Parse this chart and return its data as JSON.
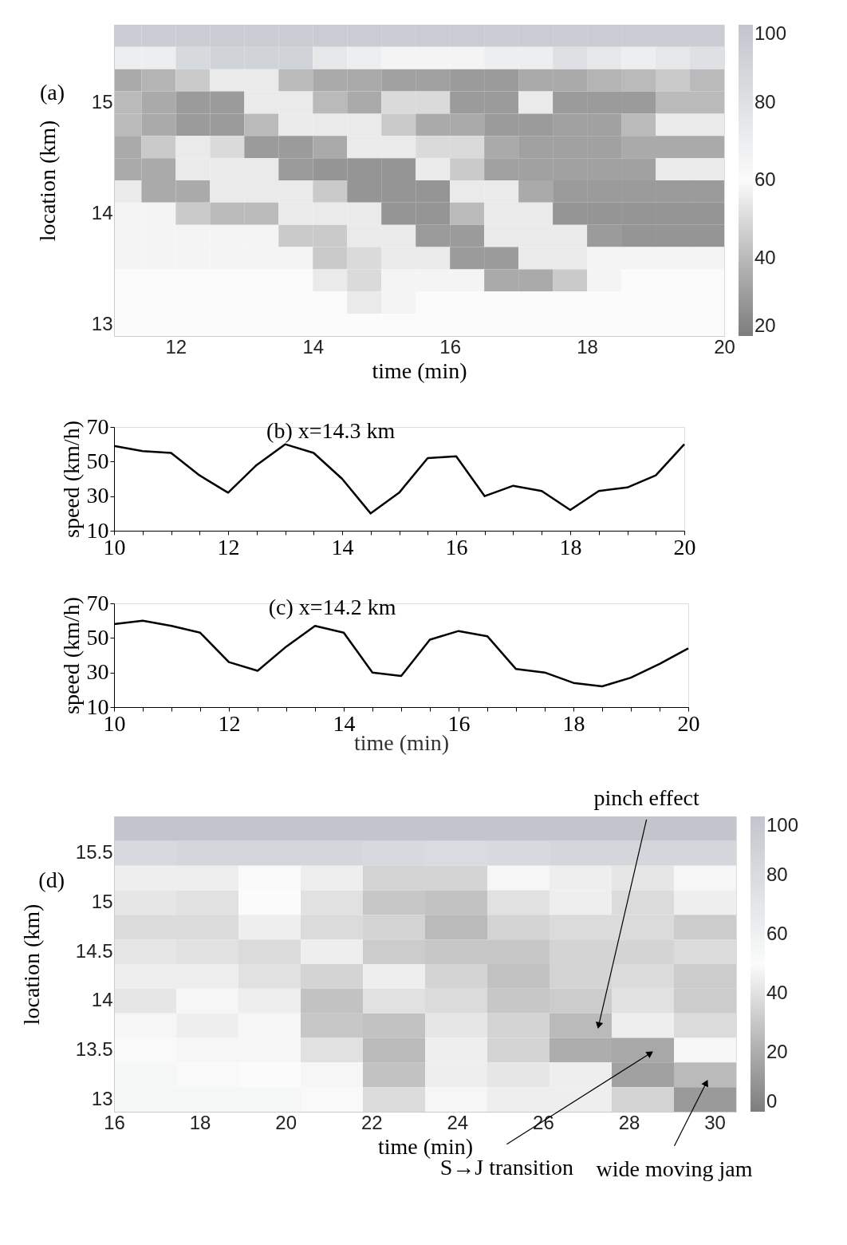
{
  "chart_data": [
    {
      "type": "heatmap",
      "title": "(a)",
      "xlabel": "time (min)",
      "ylabel": "location (km)",
      "x": [
        11.25,
        11.75,
        12.25,
        12.75,
        13.25,
        13.75,
        14.25,
        14.75,
        15.25,
        15.75,
        16.25,
        16.75,
        17.25,
        17.75,
        18.25,
        18.75,
        19.25,
        19.75
      ],
      "y_categories": [
        null,
        null,
        null,
        "15",
        null,
        null,
        null,
        null,
        "14",
        null,
        null,
        null,
        null,
        "13"
      ],
      "cells": [
        [
          95,
          95,
          95,
          95,
          95,
          95,
          95,
          95,
          95,
          95,
          95,
          95,
          95,
          95,
          95,
          95,
          95,
          95
        ],
        [
          70,
          70,
          85,
          90,
          90,
          90,
          75,
          70,
          65,
          65,
          65,
          70,
          70,
          80,
          75,
          70,
          75,
          80
        ],
        [
          35,
          38,
          45,
          55,
          55,
          40,
          35,
          35,
          32,
          32,
          30,
          30,
          35,
          35,
          38,
          40,
          45,
          40
        ],
        [
          40,
          35,
          30,
          30,
          55,
          55,
          40,
          35,
          50,
          50,
          30,
          30,
          55,
          30,
          30,
          30,
          40,
          40
        ],
        [
          40,
          35,
          30,
          30,
          40,
          55,
          55,
          55,
          45,
          35,
          35,
          30,
          30,
          32,
          32,
          40,
          55,
          55
        ],
        [
          35,
          45,
          55,
          50,
          30,
          30,
          35,
          55,
          55,
          50,
          50,
          35,
          32,
          32,
          32,
          35,
          35,
          35
        ],
        [
          35,
          35,
          55,
          55,
          55,
          30,
          28,
          28,
          28,
          55,
          45,
          32,
          32,
          32,
          32,
          32,
          55,
          55
        ],
        [
          55,
          35,
          35,
          55,
          55,
          55,
          45,
          28,
          28,
          28,
          55,
          55,
          35,
          30,
          30,
          30,
          30,
          30
        ],
        [
          58,
          58,
          45,
          40,
          40,
          55,
          55,
          55,
          28,
          28,
          40,
          55,
          55,
          28,
          28,
          28,
          28,
          28
        ],
        [
          58,
          58,
          58,
          58,
          58,
          45,
          45,
          55,
          55,
          30,
          30,
          55,
          55,
          55,
          30,
          28,
          28,
          28
        ],
        [
          58,
          58,
          58,
          58,
          58,
          58,
          45,
          50,
          55,
          55,
          30,
          30,
          55,
          55,
          58,
          58,
          58,
          58
        ],
        [
          60,
          60,
          60,
          60,
          60,
          60,
          55,
          50,
          58,
          58,
          58,
          35,
          35,
          45,
          58,
          60,
          60,
          60
        ],
        [
          60,
          60,
          60,
          60,
          60,
          60,
          60,
          55,
          58,
          60,
          60,
          60,
          60,
          60,
          60,
          60,
          60,
          60
        ],
        [
          60,
          60,
          60,
          60,
          60,
          60,
          60,
          60,
          60,
          60,
          60,
          60,
          60,
          60,
          60,
          60,
          60,
          60
        ]
      ],
      "xlim": [
        11.1,
        20
      ],
      "xticks": [
        12,
        14,
        16,
        18,
        20
      ],
      "clim": [
        20,
        100
      ],
      "cticks": [
        20,
        40,
        60,
        80,
        100
      ]
    },
    {
      "type": "line",
      "title": "(b) x=14.3 km",
      "ylabel": "speed (km/h)",
      "x": [
        10,
        10.5,
        11,
        11.5,
        12,
        12.5,
        13,
        13.5,
        14,
        14.5,
        15,
        15.5,
        16,
        16.5,
        17,
        17.5,
        18,
        18.5,
        19,
        19.5,
        20
      ],
      "series": [
        {
          "color": "#000000",
          "values": [
            59,
            56,
            55,
            42,
            32,
            48,
            60,
            55,
            40,
            20,
            32,
            52,
            53,
            30,
            36,
            33,
            22,
            33,
            35,
            42,
            60
          ]
        }
      ],
      "xlim": [
        10,
        20
      ],
      "ylim": [
        10,
        70
      ],
      "yticks": [
        10,
        30,
        50,
        70
      ],
      "xticks": [
        10,
        {
          "value": 10.5,
          "label": null
        },
        {
          "value": 11,
          "label": null
        },
        {
          "value": 11.5,
          "label": null
        },
        12,
        {
          "value": 12.5,
          "label": null
        },
        {
          "value": 13,
          "label": null
        },
        {
          "value": 13.5,
          "label": null
        },
        14,
        {
          "value": 14.5,
          "label": null
        },
        {
          "value": 15,
          "label": null
        },
        {
          "value": 15.5,
          "label": null
        },
        16,
        {
          "value": 16.5,
          "label": null
        },
        {
          "value": 17,
          "label": null
        },
        {
          "value": 17.5,
          "label": null
        },
        18,
        {
          "value": 18.5,
          "label": null
        },
        {
          "value": 19,
          "label": null
        },
        {
          "value": 19.5,
          "label": null
        },
        20
      ]
    },
    {
      "type": "line",
      "title": "(c) x=14.2 km",
      "xlabel": "time (min)",
      "ylabel": "speed (km/h)",
      "x": [
        10,
        10.5,
        11,
        11.5,
        12,
        12.5,
        13,
        13.5,
        14,
        14.5,
        15,
        15.5,
        16,
        16.5,
        17,
        17.5,
        18,
        18.5,
        19,
        19.5,
        20
      ],
      "series": [
        {
          "color": "#000000",
          "values": [
            58,
            60,
            57,
            53,
            36,
            31,
            45,
            57,
            53,
            30,
            28,
            49,
            54,
            51,
            32,
            30,
            24,
            22,
            27,
            35,
            44
          ]
        }
      ],
      "xlim": [
        10,
        20
      ],
      "ylim": [
        10,
        70
      ],
      "yticks": [
        10,
        30,
        50,
        70
      ],
      "xticks": [
        10,
        {
          "value": 10.5,
          "label": null
        },
        {
          "value": 11,
          "label": null
        },
        {
          "value": 11.5,
          "label": null
        },
        12,
        {
          "value": 12.5,
          "label": null
        },
        {
          "value": 13,
          "label": null
        },
        {
          "value": 13.5,
          "label": null
        },
        14,
        {
          "value": 14.5,
          "label": null
        },
        {
          "value": 15,
          "label": null
        },
        {
          "value": 15.5,
          "label": null
        },
        16,
        {
          "value": 16.5,
          "label": null
        },
        {
          "value": 17,
          "label": null
        },
        {
          "value": 17.5,
          "label": null
        },
        18,
        {
          "value": 18.5,
          "label": null
        },
        {
          "value": 19,
          "label": null
        },
        {
          "value": 19.5,
          "label": null
        },
        20
      ]
    },
    {
      "type": "heatmap",
      "title": "(d)",
      "xlabel": "time (min)",
      "ylabel": "location (km)",
      "x": [
        16.725,
        18.175,
        19.625,
        21.075,
        22.525,
        23.975,
        25.425,
        26.875,
        28.325,
        29.775
      ],
      "y_categories": [
        null,
        "15.5",
        null,
        "15",
        null,
        "14.5",
        null,
        "14",
        null,
        "13.5",
        null,
        "13"
      ],
      "cells": [
        [
          100,
          100,
          100,
          100,
          100,
          100,
          100,
          100,
          100,
          100
        ],
        [
          82,
          85,
          85,
          85,
          82,
          80,
          82,
          85,
          85,
          85
        ],
        [
          45,
          45,
          52,
          45,
          35,
          35,
          48,
          45,
          42,
          48
        ],
        [
          42,
          40,
          50,
          40,
          30,
          28,
          40,
          45,
          38,
          45
        ],
        [
          38,
          38,
          45,
          38,
          35,
          25,
          35,
          38,
          38,
          32
        ],
        [
          42,
          40,
          38,
          45,
          32,
          30,
          30,
          35,
          35,
          38
        ],
        [
          45,
          45,
          40,
          35,
          45,
          35,
          28,
          35,
          38,
          32
        ],
        [
          42,
          48,
          45,
          28,
          40,
          38,
          30,
          32,
          40,
          32
        ],
        [
          48,
          45,
          48,
          30,
          28,
          42,
          35,
          25,
          45,
          38
        ],
        [
          52,
          48,
          48,
          40,
          25,
          45,
          35,
          20,
          18,
          48
        ],
        [
          55,
          52,
          50,
          48,
          28,
          45,
          42,
          45,
          15,
          25
        ],
        [
          55,
          55,
          55,
          52,
          38,
          48,
          45,
          45,
          35,
          12
        ]
      ],
      "xlim": [
        16,
        30.5
      ],
      "xticks": [
        16,
        18,
        20,
        22,
        24,
        26,
        28,
        30
      ],
      "clim": [
        0,
        100
      ],
      "cticks": [
        0,
        20,
        40,
        60,
        80,
        100
      ],
      "annotations": [
        "pinch effect",
        "S→J transition",
        "wide moving jam"
      ]
    }
  ]
}
